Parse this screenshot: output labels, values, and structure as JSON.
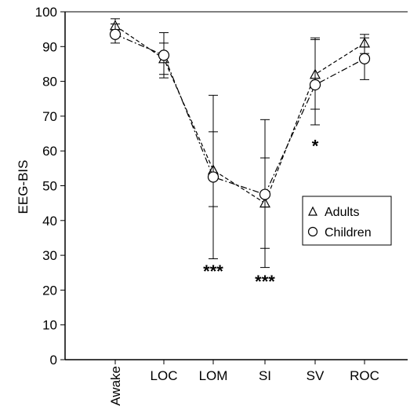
{
  "chart_data": {
    "type": "line",
    "title": "",
    "xlabel": "",
    "ylabel": "EEG-BIS",
    "ylim": [
      0,
      100
    ],
    "yticks": [
      0,
      10,
      20,
      30,
      40,
      50,
      60,
      70,
      80,
      90,
      100
    ],
    "categories": [
      "Awake",
      "LOC",
      "LOM",
      "SI",
      "SV",
      "ROC"
    ],
    "grid": false,
    "legend_position": "right",
    "series": [
      {
        "name": "Adults",
        "marker": "triangle",
        "line_style": "dashed",
        "values": [
          96,
          86.5,
          54.5,
          45,
          82,
          91
        ],
        "error_low": [
          94,
          82,
          44,
          32,
          72,
          88
        ],
        "error_high": [
          98,
          91,
          65.5,
          58,
          92,
          93.5
        ]
      },
      {
        "name": "Children",
        "marker": "circle",
        "line_style": "dash-dot",
        "values": [
          93.5,
          87.5,
          52.5,
          47.5,
          79,
          86.5
        ],
        "error_low": [
          91,
          81,
          29,
          26.5,
          67.5,
          80.5
        ],
        "error_high": [
          96.5,
          94,
          76,
          69,
          92.5,
          92.5
        ]
      }
    ],
    "annotations": [
      {
        "category": "LOM",
        "text": "***",
        "y": 26
      },
      {
        "category": "SI",
        "text": "***",
        "y": 23
      },
      {
        "category": "SV",
        "text": "*",
        "y": 62
      }
    ]
  }
}
